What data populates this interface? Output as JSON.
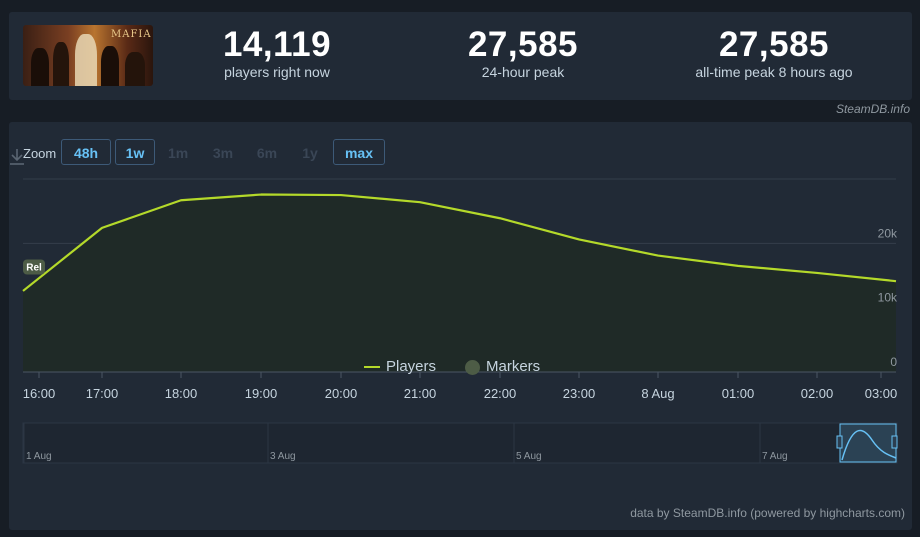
{
  "game": {
    "thumbnail_title": "MAFIA"
  },
  "stats": [
    {
      "value": "14,119",
      "label": "players right now"
    },
    {
      "value": "27,585",
      "label": "24-hour peak"
    },
    {
      "value": "27,585",
      "label": "all-time peak 8 hours ago"
    }
  ],
  "credit_top": "SteamDB.info",
  "zoom": {
    "label": "Zoom",
    "buttons": [
      {
        "label": "48h",
        "enabled": true
      },
      {
        "label": "1w",
        "enabled": true
      },
      {
        "label": "1m",
        "enabled": false
      },
      {
        "label": "3m",
        "enabled": false
      },
      {
        "label": "6m",
        "enabled": false
      },
      {
        "label": "1y",
        "enabled": false
      },
      {
        "label": "max",
        "enabled": true
      }
    ]
  },
  "colors": {
    "line": "#b4d92a",
    "area": "#1f2a27",
    "grid": "#343e4b",
    "marker": "#4d5c46",
    "navigator": "#67c1f5"
  },
  "chart_data": {
    "type": "line",
    "title": "",
    "xlabel": "",
    "ylabel": "",
    "x": [
      "15:55",
      "17:00",
      "18:00",
      "19:00",
      "20:00",
      "21:00",
      "22:00",
      "23:00",
      "8 Aug",
      "01:00",
      "02:00",
      "03:00"
    ],
    "categories_ticks": [
      "16:00",
      "17:00",
      "18:00",
      "19:00",
      "20:00",
      "21:00",
      "22:00",
      "23:00",
      "8 Aug",
      "01:00",
      "02:00",
      "03:00"
    ],
    "series": [
      {
        "name": "Players",
        "values": [
          12600,
          22400,
          26700,
          27585,
          27500,
          26400,
          23900,
          20600,
          18100,
          16500,
          15400,
          14119
        ]
      }
    ],
    "markers": [
      {
        "label": "Rel",
        "x": "15:55",
        "y": 16400
      }
    ],
    "y_ticks": [
      "0",
      "10k",
      "20k"
    ],
    "ylim": [
      0,
      30000
    ],
    "grid": true,
    "legend": [
      "Players",
      "Markers"
    ],
    "legend_position": "bottom-center",
    "navigator": {
      "labels": [
        "1 Aug",
        "3 Aug",
        "5 Aug",
        "7 Aug"
      ]
    }
  },
  "credit_bottom": "data by SteamDB.info (powered by highcharts.com)"
}
